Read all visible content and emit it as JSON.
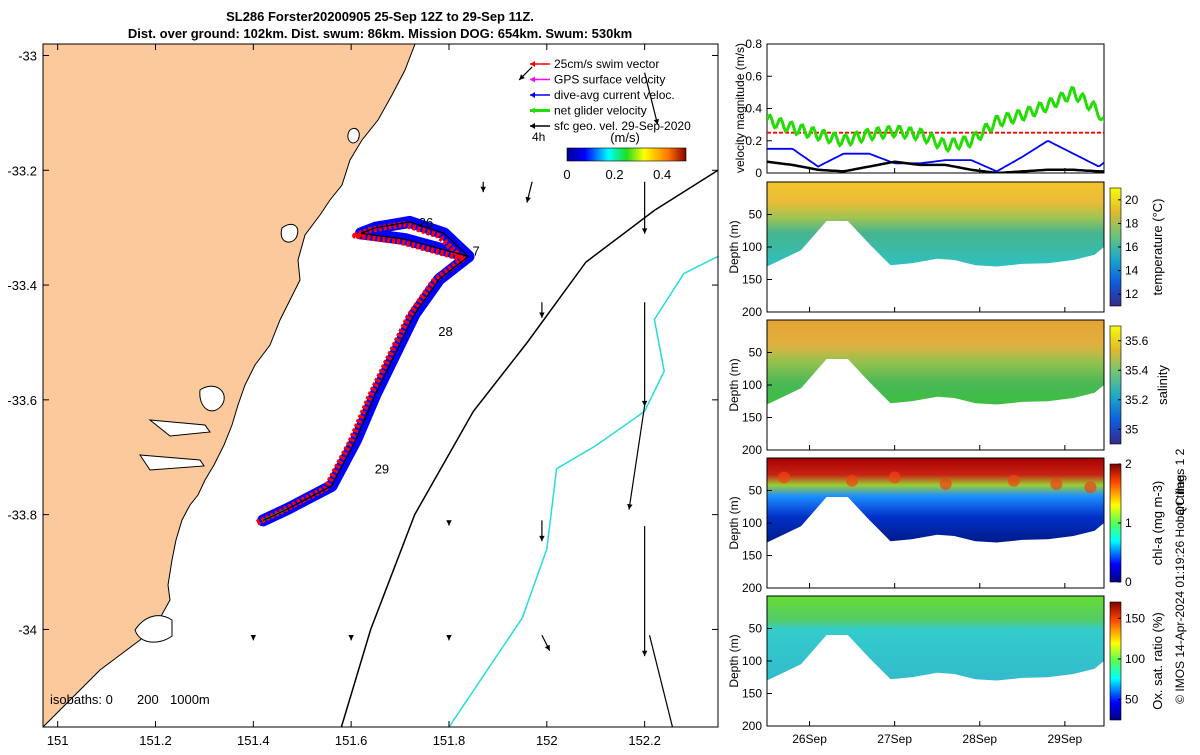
{
  "title": {
    "line1": "SL286 Forster20200905 25-Sep 12Z to 29-Sep 11Z.",
    "line2": "Dist. over ground: 102km. Dist. swum: 86km. Mission DOG: 654km. Swum: 530km"
  },
  "colors": {
    "land": "#fbc99b",
    "swim": "#ff0000",
    "gps": "#ff00ff",
    "current": "#0000ff",
    "net": "#22dd00",
    "geo": "#000000",
    "isobath200": "#000000",
    "isobath1000": "#22dddd"
  },
  "chart_data": [
    {
      "type": "map",
      "xticks": [
        "151",
        "151.2",
        "151.4",
        "151.6",
        "151.8",
        "152",
        "152.2"
      ],
      "yticks": [
        "-33",
        "-33.2",
        "-33.4",
        "-33.6",
        "-33.8",
        "-34"
      ],
      "xlim": [
        150.97,
        152.35
      ],
      "ylim": [
        -34.17,
        -32.98
      ],
      "legend": [
        {
          "key": "swim",
          "label": "25cm/s swim vector"
        },
        {
          "key": "gps",
          "label": "GPS surface velocity"
        },
        {
          "key": "current",
          "label": "dive-avg current veloc."
        },
        {
          "key": "net",
          "label": "net glider velocity"
        },
        {
          "key": "geo",
          "label": "sfc geo. vel. 29-Sep-2020"
        }
      ],
      "legend_placement": "top-right",
      "colorbar": {
        "label": "(m/s)",
        "corner_label": "4h",
        "ticks": [
          "0",
          "0.2",
          "0.4"
        ],
        "range": [
          0,
          0.5
        ]
      },
      "isobath_label": {
        "prefix": "isobaths: 0",
        "v200": "200",
        "v1000": "1000m"
      },
      "day_labels": [
        {
          "text": "26",
          "lon": 151.73,
          "lat": -33.29
        },
        {
          "text": "7",
          "lon": 151.84,
          "lat": -33.34
        },
        {
          "text": "28",
          "lon": 151.77,
          "lat": -33.48
        },
        {
          "text": "29",
          "lon": 151.64,
          "lat": -33.72
        }
      ],
      "track": [
        [
          151.42,
          -33.81
        ],
        [
          151.47,
          -33.79
        ],
        [
          151.56,
          -33.75
        ],
        [
          151.61,
          -33.67
        ],
        [
          151.65,
          -33.59
        ],
        [
          151.69,
          -33.52
        ],
        [
          151.73,
          -33.45
        ],
        [
          151.78,
          -33.39
        ],
        [
          151.84,
          -33.35
        ],
        [
          151.79,
          -33.31
        ],
        [
          151.72,
          -33.29
        ],
        [
          151.65,
          -33.3
        ],
        [
          151.62,
          -33.31
        ],
        [
          151.71,
          -33.32
        ],
        [
          151.84,
          -33.35
        ]
      ],
      "isobath_200": [
        [
          151.58,
          -34.17
        ],
        [
          151.64,
          -34.0
        ],
        [
          151.73,
          -33.8
        ],
        [
          151.85,
          -33.62
        ],
        [
          151.96,
          -33.5
        ],
        [
          152.08,
          -33.36
        ],
        [
          152.22,
          -33.27
        ],
        [
          152.35,
          -33.2
        ]
      ],
      "isobath_1000": [
        [
          151.8,
          -34.17
        ],
        [
          151.95,
          -33.98
        ],
        [
          152.0,
          -33.86
        ],
        [
          152.02,
          -33.72
        ],
        [
          152.1,
          -33.68
        ],
        [
          152.2,
          -33.62
        ],
        [
          152.24,
          -33.55
        ],
        [
          152.22,
          -33.46
        ],
        [
          152.28,
          -33.38
        ],
        [
          152.35,
          -33.35
        ]
      ],
      "geo_vectors": [
        {
          "lon": 151.97,
          "lat": -33.02,
          "u": -0.005,
          "v": -0.005
        },
        {
          "lon": 152.2,
          "lat": -33.03,
          "u": 0.005,
          "v": -0.02
        },
        {
          "lon": 152.2,
          "lat": -33.22,
          "u": 0.0,
          "v": -0.02
        },
        {
          "lon": 151.97,
          "lat": -33.22,
          "u": -0.002,
          "v": -0.008
        },
        {
          "lon": 151.87,
          "lat": -33.22,
          "u": 0.0,
          "v": -0.004
        },
        {
          "lon": 152.2,
          "lat": -33.43,
          "u": 0.0,
          "v": -0.04
        },
        {
          "lon": 151.99,
          "lat": -33.43,
          "u": 0.0,
          "v": -0.006
        },
        {
          "lon": 152.2,
          "lat": -33.61,
          "u": -0.006,
          "v": -0.04
        },
        {
          "lon": 152.2,
          "lat": -33.82,
          "u": 0.0,
          "v": -0.05
        },
        {
          "lon": 152.21,
          "lat": -34.01,
          "u": 0.01,
          "v": -0.04
        },
        {
          "lon": 151.99,
          "lat": -33.81,
          "u": 0.0,
          "v": -0.008
        },
        {
          "lon": 151.99,
          "lat": -34.01,
          "u": 0.003,
          "v": -0.006
        },
        {
          "lon": 151.8,
          "lat": -33.81,
          "u": 0.0,
          "v": -0.002
        },
        {
          "lon": 151.8,
          "lat": -34.01,
          "u": 0.0,
          "v": -0.002
        },
        {
          "lon": 151.6,
          "lat": -34.01,
          "u": 0.0,
          "v": -0.002
        },
        {
          "lon": 151.4,
          "lat": -34.01,
          "u": 0.0,
          "v": -0.002
        }
      ]
    },
    {
      "type": "line",
      "ylabel": "velocity magnitude (m/s)",
      "ylim": [
        0,
        0.8
      ],
      "yticks": [
        "0",
        "0.2",
        "0.4",
        "0.6",
        "0.8"
      ],
      "x": [
        25.5,
        25.8,
        26.1,
        26.4,
        26.7,
        27.0,
        27.3,
        27.6,
        27.9,
        28.2,
        28.5,
        28.8,
        29.1,
        29.4,
        29.5
      ],
      "series": [
        {
          "key": "swim",
          "values": [
            0.25,
            0.25,
            0.25,
            0.25,
            0.25,
            0.25,
            0.25,
            0.25,
            0.25,
            0.25,
            0.25,
            0.25,
            0.25,
            0.25,
            0.25
          ]
        },
        {
          "key": "net",
          "values": [
            0.33,
            0.28,
            0.24,
            0.2,
            0.24,
            0.26,
            0.24,
            0.17,
            0.2,
            0.32,
            0.36,
            0.42,
            0.5,
            0.38,
            0.25
          ]
        },
        {
          "key": "current",
          "values": [
            0.15,
            0.15,
            0.04,
            0.12,
            0.12,
            0.06,
            0.06,
            0.08,
            0.08,
            0.01,
            0.1,
            0.2,
            0.12,
            0.04,
            0.08
          ]
        },
        {
          "key": "geo",
          "values": [
            0.07,
            0.05,
            0.02,
            0.01,
            0.04,
            0.07,
            0.05,
            0.05,
            0.02,
            0.0,
            0.01,
            0.02,
            0.02,
            0.01,
            0.01
          ]
        }
      ]
    },
    {
      "type": "heatmap",
      "ylabel": "Depth (m)",
      "ylim": [
        0,
        200
      ],
      "yticks": [
        "50",
        "100",
        "150",
        "200"
      ],
      "colorbar": {
        "label": "temperature (°C)",
        "ticks": [
          "12",
          "14",
          "16",
          "18",
          "20"
        ],
        "range": [
          11,
          21
        ]
      },
      "colorscale": "parula",
      "surface": 19.3,
      "deep": 14.5,
      "bottom_shallow": 12.5
    },
    {
      "type": "heatmap",
      "ylabel": "Depth (m)",
      "ylim": [
        0,
        200
      ],
      "yticks": [
        "50",
        "100",
        "150",
        "200"
      ],
      "colorbar": {
        "label": "salinity",
        "ticks": [
          "35",
          "35.2",
          "35.4",
          "35.6"
        ],
        "range": [
          34.9,
          35.7
        ]
      },
      "colorscale": "parula",
      "surface": 35.55,
      "deep": 35.3,
      "bottom_shallow": 35.2
    },
    {
      "type": "heatmap",
      "ylabel": "Depth (m)",
      "ylim": [
        0,
        200
      ],
      "yticks": [
        "50",
        "100",
        "150",
        "200"
      ],
      "colorbar": {
        "label": "chl-a (mg m-3)",
        "ticks": [
          "0",
          "1",
          "2"
        ],
        "range": [
          0,
          2
        ]
      },
      "colorscale": "jet",
      "surface": 1.8,
      "deep": 0.4,
      "bottom_shallow": 0.1
    },
    {
      "type": "heatmap",
      "ylabel": "Depth (m)",
      "ylim": [
        0,
        200
      ],
      "yticks": [
        "50",
        "100",
        "150",
        "200"
      ],
      "colorbar": {
        "label": "Ox. sat. ratio (%)",
        "ticks": [
          "50",
          "100",
          "150"
        ],
        "range": [
          25,
          170
        ]
      },
      "colorscale": "jet",
      "surface": 120,
      "deep": 95,
      "bottom_shallow": 92
    }
  ],
  "time_axis": {
    "ticks": [
      {
        "day": 26,
        "label": "26Sep"
      },
      {
        "day": 27,
        "label": "27Sep"
      },
      {
        "day": 28,
        "label": "28Sep"
      },
      {
        "day": 29,
        "label": "29Sep"
      }
    ],
    "range": [
      25.5,
      29.46
    ]
  },
  "qc_flags": {
    "label": "QC flags",
    "v1": "1",
    "v2": "2"
  },
  "credit": "© IMOS 14-Apr-2024 01:19:26 Hobart time."
}
